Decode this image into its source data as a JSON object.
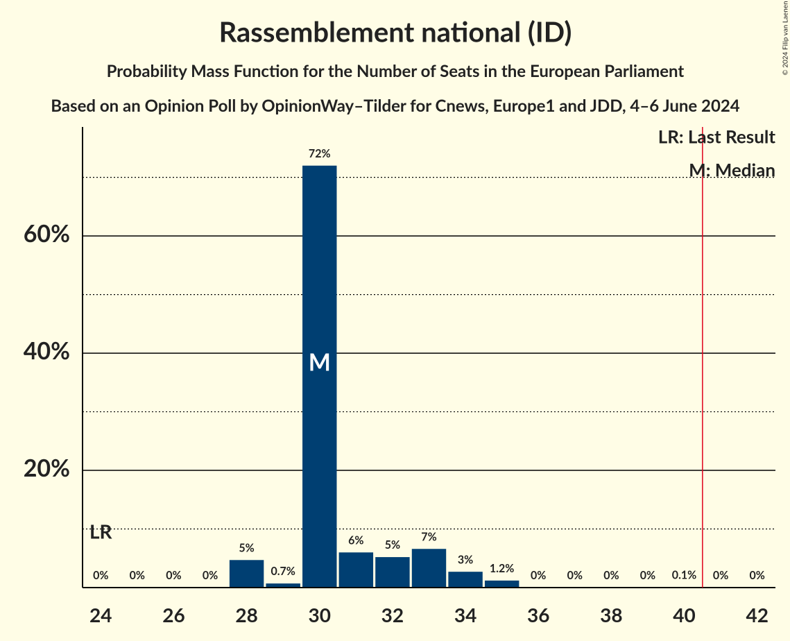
{
  "chart_data": {
    "type": "bar",
    "title": "Rassemblement national (ID)",
    "subtitle": "Probability Mass Function for the Number of Seats in the European Parliament",
    "source_note": "Based on an Opinion Poll by OpinionWay–Tilder for Cnews, Europe1 and JDD, 4–6 June 2024",
    "copyright": "© 2024 Filip van Laenen",
    "x": [
      24,
      25,
      26,
      27,
      28,
      29,
      30,
      31,
      32,
      33,
      34,
      35,
      36,
      37,
      38,
      39,
      40,
      41,
      42
    ],
    "values": [
      0,
      0,
      0,
      0,
      4.7,
      0.7,
      72,
      6,
      5.2,
      6.6,
      2.7,
      1.2,
      0,
      0,
      0,
      0,
      0.1,
      0,
      0
    ],
    "value_labels": [
      "0%",
      "0%",
      "0%",
      "0%",
      "5%",
      "0.7%",
      "72%",
      "6%",
      "5%",
      "7%",
      "3%",
      "1.2%",
      "0%",
      "0%",
      "0%",
      "0%",
      "0.1%",
      "0%",
      "0%"
    ],
    "color": "#003f72",
    "xlim": [
      23.5,
      42.5
    ],
    "xticks": [
      24,
      26,
      28,
      30,
      32,
      34,
      36,
      38,
      40,
      42
    ],
    "ylim": [
      0,
      78.6
    ],
    "yticks": [
      {
        "value": 20,
        "label": "20%"
      },
      {
        "value": 40,
        "label": "40%"
      },
      {
        "value": 60,
        "label": "60%"
      }
    ],
    "minor_yticks": [
      10,
      30,
      50,
      70
    ],
    "grid": true,
    "last_result": 40.5,
    "last_result_color": "#e0001b",
    "lr_marker": {
      "x": 24,
      "label": "LR"
    },
    "median": {
      "x": 30,
      "label": "M"
    },
    "legend": [
      "LR: Last Result",
      "M: Median"
    ]
  }
}
